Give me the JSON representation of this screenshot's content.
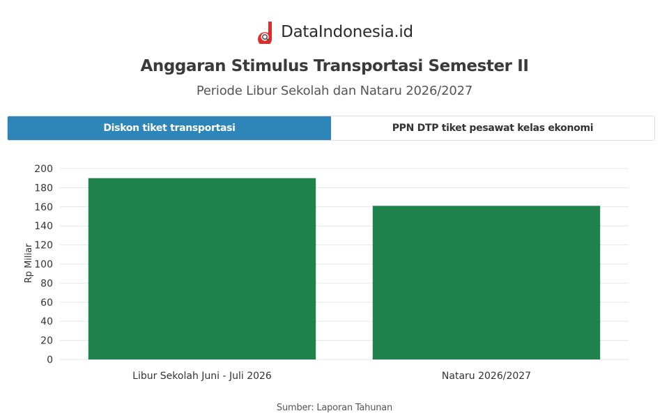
{
  "brand": {
    "name": "DataIndonesia.id",
    "logo_icon": "dataindonesia-logo-icon",
    "logo_color": "#e02b2b"
  },
  "header": {
    "title": "Anggaran Stimulus Transportasi Semester II",
    "subtitle": "Periode Libur Sekolah dan Nataru 2026/2027"
  },
  "tabs": [
    {
      "label": "Diskon tiket transportasi",
      "active": true
    },
    {
      "label": "PPN DTP tiket pesawat kelas ekonomi",
      "active": false
    }
  ],
  "colors": {
    "tab_active": "#2e86b8",
    "bar": "#1f814b",
    "grid": "#e6e6e6"
  },
  "chart_data": {
    "type": "bar",
    "categories": [
      "Libur Sekolah Juni - Juli 2026",
      "Nataru 2026/2027"
    ],
    "values": [
      190,
      161
    ],
    "ylabel": "Rp Miliar",
    "ylim": [
      0,
      200
    ],
    "yticks": [
      0,
      20,
      40,
      60,
      80,
      100,
      120,
      140,
      160,
      180,
      200
    ],
    "grid": true,
    "legend": "none"
  },
  "footer": {
    "source": "Sumber: Laporan Tahunan"
  }
}
